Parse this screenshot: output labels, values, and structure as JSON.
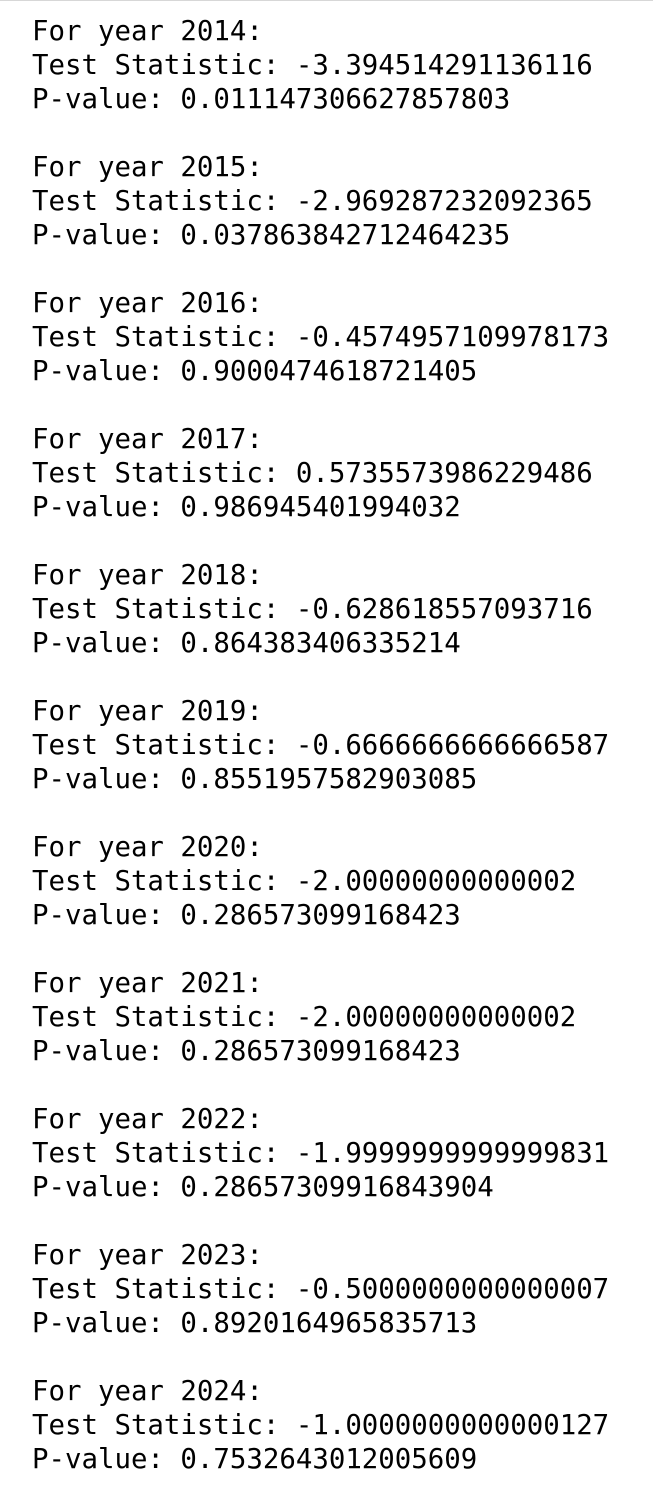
{
  "results": [
    {
      "heading": "For year 2014:",
      "test_statistic": "Test Statistic: -3.394514291136116",
      "p_value": "P-value: 0.011147306627857803"
    },
    {
      "heading": "For year 2015:",
      "test_statistic": "Test Statistic: -2.969287232092365",
      "p_value": "P-value: 0.037863842712464235"
    },
    {
      "heading": "For year 2016:",
      "test_statistic": "Test Statistic: -0.4574957109978173",
      "p_value": "P-value: 0.9000474618721405"
    },
    {
      "heading": "For year 2017:",
      "test_statistic": "Test Statistic: 0.5735573986229486",
      "p_value": "P-value: 0.986945401994032"
    },
    {
      "heading": "For year 2018:",
      "test_statistic": "Test Statistic: -0.628618557093716",
      "p_value": "P-value: 0.864383406335214"
    },
    {
      "heading": "For year 2019:",
      "test_statistic": "Test Statistic: -0.6666666666666587",
      "p_value": "P-value: 0.8551957582903085"
    },
    {
      "heading": "For year 2020:",
      "test_statistic": "Test Statistic: -2.00000000000002",
      "p_value": "P-value: 0.286573099168423"
    },
    {
      "heading": "For year 2021:",
      "test_statistic": "Test Statistic: -2.00000000000002",
      "p_value": "P-value: 0.286573099168423"
    },
    {
      "heading": "For year 2022:",
      "test_statistic": "Test Statistic: -1.9999999999999831",
      "p_value": "P-value: 0.28657309916843904"
    },
    {
      "heading": "For year 2023:",
      "test_statistic": "Test Statistic: -0.5000000000000007",
      "p_value": "P-value: 0.8920164965835713"
    },
    {
      "heading": "For year 2024:",
      "test_statistic": "Test Statistic: -1.0000000000000127",
      "p_value": "P-value: 0.7532643012005609"
    }
  ]
}
